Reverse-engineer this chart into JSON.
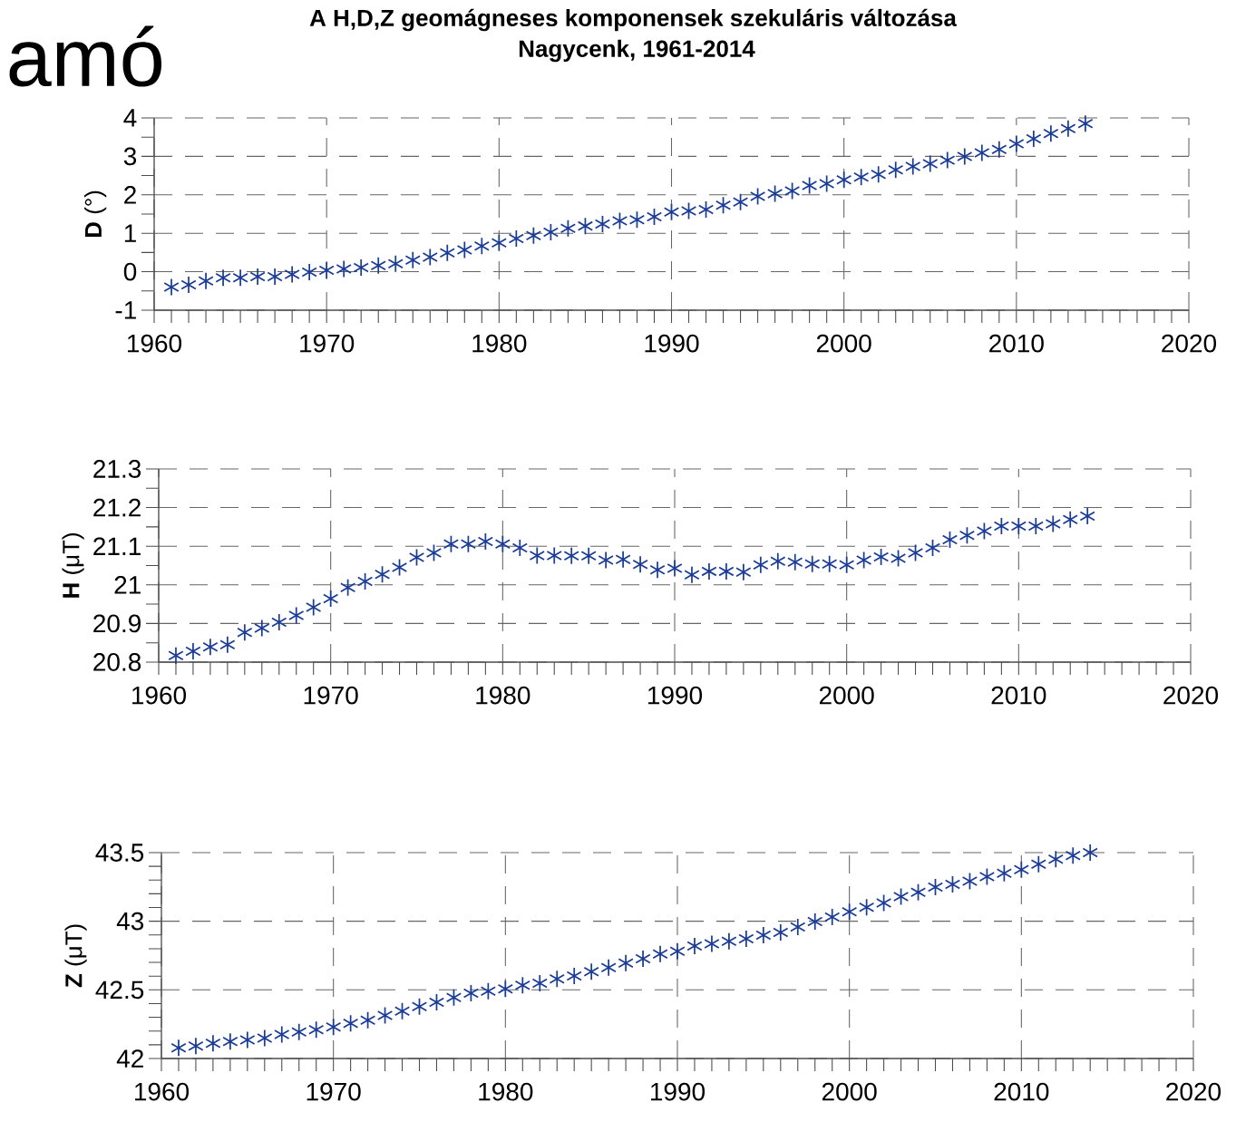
{
  "chart_data": [
    {
      "type": "scatter",
      "title": "A H,D,Z geomágneses komponensek szekuláris változása",
      "subtitle": "Nagycenk, 1961-2014",
      "annotations": [
        "amó"
      ],
      "ylabel": "**D** (°)",
      "color": "#1a3c96",
      "marker": "cross",
      "grid": true,
      "x": [
        1961,
        1962,
        1963,
        1964,
        1965,
        1966,
        1967,
        1968,
        1969,
        1970,
        1971,
        1972,
        1973,
        1974,
        1975,
        1976,
        1977,
        1978,
        1979,
        1980,
        1981,
        1982,
        1983,
        1984,
        1985,
        1986,
        1987,
        1988,
        1989,
        1990,
        1991,
        1992,
        1993,
        1994,
        1995,
        1996,
        1997,
        1998,
        1999,
        2000,
        2001,
        2002,
        2003,
        2004,
        2005,
        2006,
        2007,
        2008,
        2009,
        2010,
        2011,
        2012,
        2013,
        2014
      ],
      "values": [
        -0.4,
        -0.34,
        -0.24,
        -0.16,
        -0.16,
        -0.13,
        -0.13,
        -0.07,
        -0.01,
        0.04,
        0.07,
        0.11,
        0.16,
        0.21,
        0.3,
        0.38,
        0.49,
        0.57,
        0.67,
        0.75,
        0.86,
        0.94,
        1.03,
        1.13,
        1.19,
        1.24,
        1.32,
        1.35,
        1.43,
        1.55,
        1.58,
        1.62,
        1.73,
        1.81,
        1.96,
        2.03,
        2.1,
        2.24,
        2.29,
        2.39,
        2.46,
        2.53,
        2.65,
        2.74,
        2.81,
        2.9,
        3.0,
        3.09,
        3.18,
        3.33,
        3.46,
        3.59,
        3.72,
        3.85
      ],
      "xlim": [
        1960,
        2020
      ],
      "xticks": [
        1960,
        1970,
        1980,
        1990,
        2000,
        2010,
        2020
      ],
      "ylim": [
        -1,
        4
      ],
      "yticks": [
        -1,
        0,
        1,
        2,
        3,
        4
      ]
    },
    {
      "type": "scatter",
      "ylabel": "**H** (μT)",
      "color": "#1a3c96",
      "marker": "cross",
      "grid": true,
      "x": [
        1961,
        1962,
        1963,
        1964,
        1965,
        1966,
        1967,
        1968,
        1969,
        1970,
        1971,
        1972,
        1973,
        1974,
        1975,
        1976,
        1977,
        1978,
        1979,
        1980,
        1981,
        1982,
        1983,
        1984,
        1985,
        1986,
        1987,
        1988,
        1989,
        1990,
        1991,
        1992,
        1993,
        1994,
        1995,
        1996,
        1997,
        1998,
        1999,
        2000,
        2001,
        2002,
        2003,
        2004,
        2005,
        2006,
        2007,
        2008,
        2009,
        2010,
        2011,
        2012,
        2013,
        2014
      ],
      "values": [
        20.817,
        20.828,
        20.839,
        20.845,
        20.877,
        20.888,
        20.903,
        20.921,
        20.942,
        20.964,
        20.993,
        21.009,
        21.027,
        21.045,
        21.071,
        21.083,
        21.106,
        21.106,
        21.112,
        21.106,
        21.096,
        21.076,
        21.076,
        21.075,
        21.075,
        21.064,
        21.066,
        21.053,
        21.039,
        21.043,
        21.026,
        21.035,
        21.035,
        21.033,
        21.052,
        21.061,
        21.059,
        21.054,
        21.054,
        21.052,
        21.064,
        21.072,
        21.069,
        21.083,
        21.096,
        21.117,
        21.128,
        21.139,
        21.152,
        21.152,
        21.152,
        21.158,
        21.169,
        21.178
      ],
      "xlim": [
        1960,
        2020
      ],
      "xticks": [
        1960,
        1970,
        1980,
        1990,
        2000,
        2010,
        2020
      ],
      "ylim": [
        20.8,
        21.3
      ],
      "yticks": [
        20.8,
        20.9,
        21,
        21.1,
        21.2,
        21.3
      ]
    },
    {
      "type": "scatter",
      "ylabel": "**Z** (μT)",
      "color": "#1a3c96",
      "marker": "cross",
      "grid": true,
      "x": [
        1961,
        1962,
        1963,
        1964,
        1965,
        1966,
        1967,
        1968,
        1969,
        1970,
        1971,
        1972,
        1973,
        1974,
        1975,
        1976,
        1977,
        1978,
        1979,
        1980,
        1981,
        1982,
        1983,
        1984,
        1985,
        1986,
        1987,
        1988,
        1989,
        1990,
        1991,
        1992,
        1993,
        1994,
        1995,
        1996,
        1997,
        1998,
        1999,
        2000,
        2001,
        2002,
        2003,
        2004,
        2005,
        2006,
        2007,
        2008,
        2009,
        2010,
        2011,
        2012,
        2013,
        2014
      ],
      "values": [
        42.078,
        42.091,
        42.11,
        42.123,
        42.136,
        42.149,
        42.175,
        42.193,
        42.209,
        42.23,
        42.256,
        42.279,
        42.313,
        42.345,
        42.379,
        42.41,
        42.444,
        42.475,
        42.491,
        42.507,
        42.533,
        42.548,
        42.58,
        42.601,
        42.632,
        42.663,
        42.695,
        42.726,
        42.762,
        42.782,
        42.82,
        42.836,
        42.854,
        42.872,
        42.898,
        42.919,
        42.958,
        42.997,
        43.031,
        43.068,
        43.102,
        43.133,
        43.18,
        43.211,
        43.248,
        43.269,
        43.292,
        43.324,
        43.35,
        43.376,
        43.415,
        43.452,
        43.479,
        43.5
      ],
      "xlim": [
        1960,
        2020
      ],
      "xticks": [
        1960,
        1970,
        1980,
        1990,
        2000,
        2010,
        2020
      ],
      "ylim": [
        42,
        43.5
      ],
      "yticks": [
        42,
        42.5,
        43,
        43.5
      ]
    }
  ]
}
